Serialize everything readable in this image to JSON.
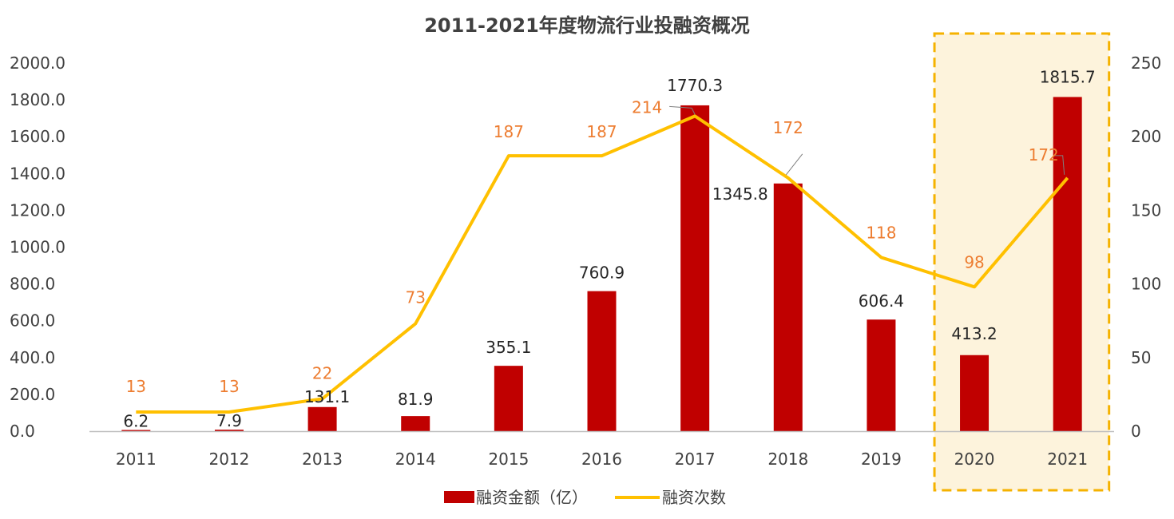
{
  "colors": {
    "bar": "#c00000",
    "line": "#ffc000",
    "line_label": "#ed7d31",
    "highlight_fill": "#fdf3dc",
    "highlight_border": "#f5b200",
    "text": "#404040",
    "axis": "#bfbfbf"
  },
  "chart_data": {
    "type": "bar",
    "title": "2011-2021年度物流行业投融资概况",
    "categories": [
      "2011",
      "2012",
      "2013",
      "2014",
      "2015",
      "2016",
      "2017",
      "2018",
      "2019",
      "2020",
      "2021"
    ],
    "series": [
      {
        "name": "融资金额（亿）",
        "type": "bar",
        "axis": "left",
        "values": [
          6.2,
          7.9,
          131.1,
          81.9,
          355.1,
          760.9,
          1770.3,
          1345.8,
          606.4,
          413.2,
          1815.7
        ],
        "labels": [
          "6.2",
          "7.9",
          "131.1",
          "81.9",
          "355.1",
          "760.9",
          "1770.3",
          "1345.8",
          "606.4",
          "413.2",
          "1815.7"
        ]
      },
      {
        "name": "融资次数",
        "type": "line",
        "axis": "right",
        "values": [
          13,
          13,
          22,
          73,
          187,
          187,
          214,
          172,
          118,
          98,
          172
        ],
        "labels": [
          "13",
          "13",
          "22",
          "73",
          "187",
          "187",
          "214",
          "172",
          "118",
          "98",
          "172"
        ]
      }
    ],
    "y_left": {
      "min": 0,
      "max": 2000,
      "ticks": [
        "0.0",
        "200.0",
        "400.0",
        "600.0",
        "800.0",
        "1000.0",
        "1200.0",
        "1400.0",
        "1600.0",
        "1800.0",
        "2000.0"
      ]
    },
    "y_right": {
      "min": 0,
      "max": 250,
      "ticks": [
        "0",
        "50",
        "100",
        "150",
        "200",
        "250"
      ]
    },
    "highlight_categories": [
      "2020",
      "2021"
    ],
    "grid": false,
    "legend_position": "bottom"
  }
}
